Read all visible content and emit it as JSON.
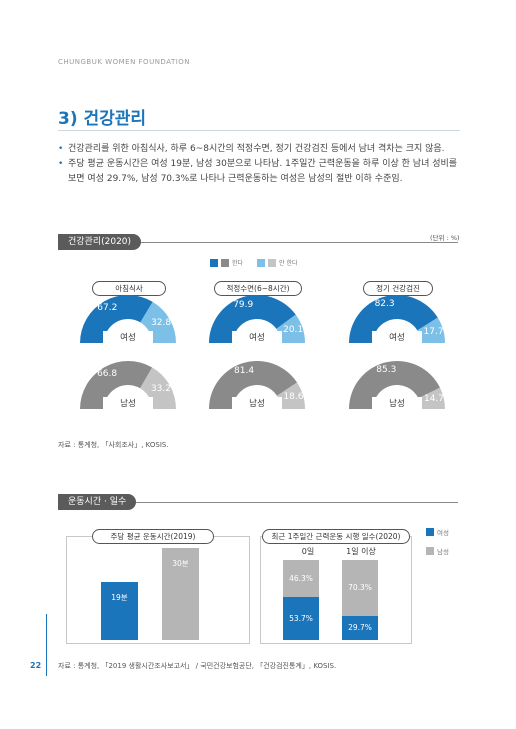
{
  "header": {
    "foundation": "CHUNGBUK WOMEN FOUNDATION"
  },
  "title": "3) 건강관리",
  "bullets": [
    "건강관리를 위한 아침식사, 하루 6~8시간의 적정수면, 정기 건강검진 등에서 남녀 격차는 크지 않음.",
    "주당 평균 운동시간은 여성 19분, 남성 30분으로 나타남. 1주일간 근력운동을 하루 이상 한 남녀 성비를 보면 여성 29.7%, 남성 70.3%로 나타나 근력운동하는 여성은 남성의 절반 이하 수준임."
  ],
  "section1": {
    "tab": "건강관리(2020)",
    "unit": "(단위 : %)",
    "legend": {
      "do": "한다",
      "dont": "안 한다"
    },
    "colors": {
      "female_do": "#1b75bb",
      "female_dont": "#7cc0e8",
      "male_do": "#8a8a8a",
      "male_dont": "#c4c4c4"
    },
    "categories": [
      "아침식사",
      "적정수면(6~8시간)",
      "정기 건강검진"
    ],
    "female_label": "여성",
    "male_label": "남성",
    "female": [
      {
        "do": "67.2",
        "dont": "32.8",
        "do_value": 67.2
      },
      {
        "do": "79.9",
        "dont": "20.1",
        "do_value": 79.9
      },
      {
        "do": "82.3",
        "dont": "17.7",
        "do_value": 82.3
      }
    ],
    "male": [
      {
        "do": "66.8",
        "dont": "33.2",
        "do_value": 66.8
      },
      {
        "do": "81.4",
        "dont": "18.6",
        "do_value": 81.4
      },
      {
        "do": "85.3",
        "dont": "14.7",
        "do_value": 85.3
      }
    ],
    "source": "자료 : 통계청, 「사회조사」, KOSIS."
  },
  "section2": {
    "tab": "운동시간 · 일수",
    "left": {
      "title": "주당 평균 운동시간(2019)",
      "female_label": "19분",
      "male_label": "30분",
      "female_value": 19,
      "male_value": 30,
      "max": 30
    },
    "right": {
      "title": "최근 1주일간 근력운동 시행 일수(2020)",
      "col0": "0일",
      "col1": "1일 이상",
      "col0_male": "46.3%",
      "col0_female": "53.7%",
      "col1_male": "70.3%",
      "col1_female": "29.7%",
      "col0_female_value": 53.7,
      "col1_female_value": 29.7
    },
    "legend_female": "여성",
    "legend_male": "남성",
    "source": "자료 : 통계청, 「2019 생활시간조사보고서」 / 국민건강보험공단, 「건강검진통계」, KOSIS."
  },
  "page_number": "22"
}
